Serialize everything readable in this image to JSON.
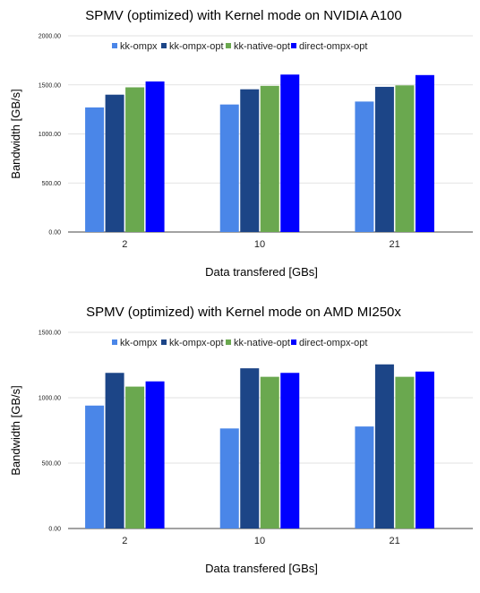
{
  "chart_data": [
    {
      "type": "bar",
      "title": "SPMV (optimized) with Kernel mode on NVIDIA A100",
      "xlabel": "Data transfered [GBs]",
      "ylabel": "Bandwidth [GB/s]",
      "categories": [
        "2",
        "10",
        "21"
      ],
      "ylim": [
        0,
        2000
      ],
      "yticks": [
        "0.00",
        "500.00",
        "1000.00",
        "1500.00",
        "2000.00"
      ],
      "grid": true,
      "legend_position": "top",
      "series": [
        {
          "name": "kk-ompx",
          "color": "#4a86e8",
          "values": [
            1270,
            1300,
            1330
          ]
        },
        {
          "name": "kk-ompx-opt",
          "color": "#1c4587",
          "values": [
            1400,
            1455,
            1480
          ]
        },
        {
          "name": "kk-native-opt",
          "color": "#6aa84f",
          "values": [
            1475,
            1490,
            1495
          ]
        },
        {
          "name": "direct-ompx-opt",
          "color": "#0000ff",
          "values": [
            1535,
            1605,
            1600
          ]
        }
      ]
    },
    {
      "type": "bar",
      "title": "SPMV (optimized) with Kernel mode on AMD MI250x",
      "xlabel": "Data transfered [GBs]",
      "ylabel": "Bandwidth [GB/s]",
      "categories": [
        "2",
        "10",
        "21"
      ],
      "ylim": [
        0,
        1500
      ],
      "yticks": [
        "0.00",
        "500.00",
        "1000.00",
        "1500.00"
      ],
      "grid": true,
      "legend_position": "top",
      "series": [
        {
          "name": "kk-ompx",
          "color": "#4a86e8",
          "values": [
            940,
            765,
            780
          ]
        },
        {
          "name": "kk-ompx-opt",
          "color": "#1c4587",
          "values": [
            1190,
            1225,
            1255
          ]
        },
        {
          "name": "kk-native-opt",
          "color": "#6aa84f",
          "values": [
            1085,
            1160,
            1160
          ]
        },
        {
          "name": "direct-ompx-opt",
          "color": "#0000ff",
          "values": [
            1125,
            1190,
            1200
          ]
        }
      ]
    }
  ]
}
